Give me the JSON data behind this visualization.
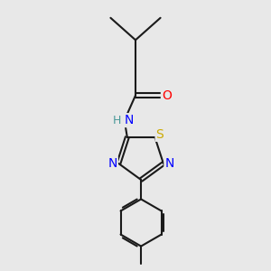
{
  "bg_color": "#e8e8e8",
  "bond_color": "#1a1a1a",
  "bond_width": 1.5,
  "dbo": 0.06,
  "atom_colors": {
    "O": "#ff0000",
    "N": "#0000ff",
    "S": "#ccaa00",
    "H": "#4a9999",
    "C": "#1a1a1a"
  },
  "font_size": 10,
  "font_size_small": 9
}
